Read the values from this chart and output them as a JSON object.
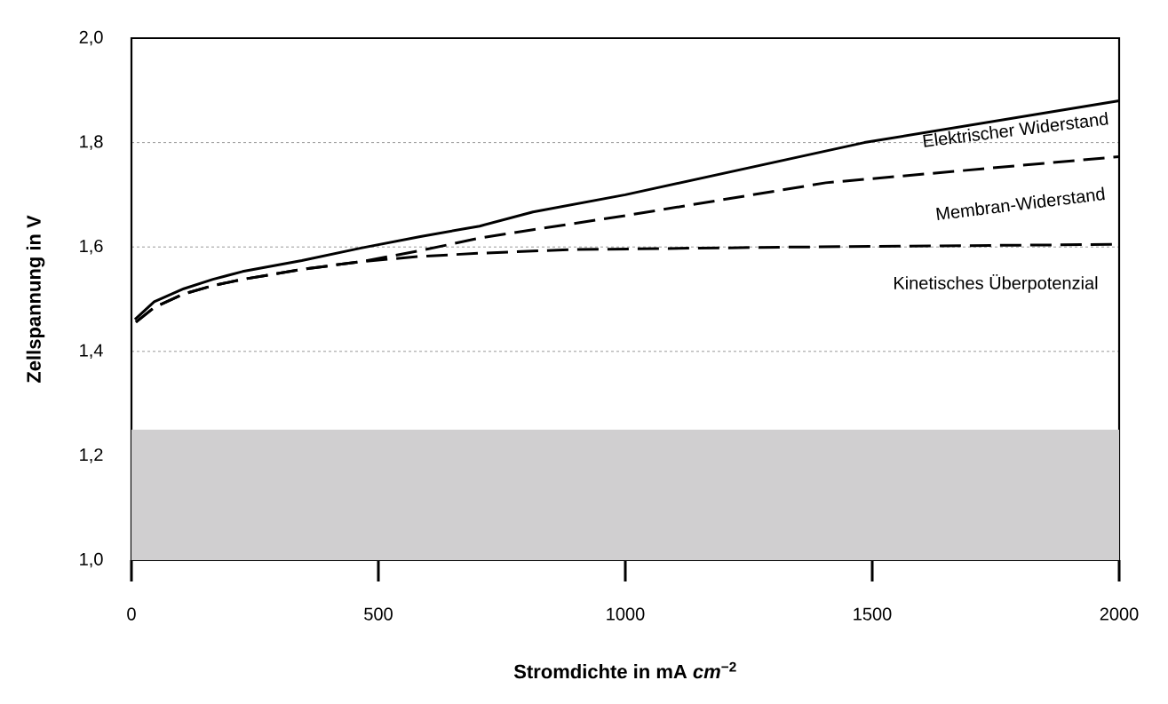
{
  "chart_data": {
    "type": "line",
    "xlabel": "Stromdichte in mA *cm*$^{−2}$",
    "ylabel": "Zellspannung in V",
    "xlim": [
      0,
      2000
    ],
    "ylim": [
      1.0,
      2.0
    ],
    "xticks": [
      0,
      500,
      1000,
      1500,
      2000
    ],
    "yticks": [
      {
        "value": 1.0,
        "label": "1,0"
      },
      {
        "value": 1.2,
        "label": "1,2"
      },
      {
        "value": 1.4,
        "label": "1,4"
      },
      {
        "value": 1.6,
        "label": "1,6"
      },
      {
        "value": 1.8,
        "label": "1,8"
      },
      {
        "value": 2.0,
        "label": "2,0"
      }
    ],
    "grid": "y",
    "series": [
      {
        "color": "#000000",
        "line_style": "solid",
        "x": [
          7,
          46,
          106,
          165,
          225,
          345,
          465,
          585,
          705,
          813,
          1000,
          1484,
          2000
        ],
        "values": [
          1.461,
          1.495,
          1.52,
          1.538,
          1.553,
          1.574,
          1.598,
          1.62,
          1.64,
          1.667,
          1.7,
          1.8,
          1.88
        ]
      },
      {
        "color": "#000000",
        "line_style": "dashed",
        "x": [
          9,
          46,
          106,
          165,
          225,
          345,
          465,
          585,
          705,
          813,
          1000,
          1406,
          2000
        ],
        "values": [
          1.456,
          1.484,
          1.51,
          1.526,
          1.538,
          1.557,
          1.572,
          1.593,
          1.617,
          1.633,
          1.66,
          1.723,
          1.773
        ]
      },
      {
        "color": "#000000",
        "line_style": "dashed",
        "x": [
          9,
          46,
          106,
          165,
          225,
          345,
          465,
          585,
          705,
          885,
          1359,
          2000
        ],
        "values": [
          1.456,
          1.484,
          1.51,
          1.526,
          1.538,
          1.557,
          1.572,
          1.582,
          1.588,
          1.595,
          1.6,
          1.605
        ]
      }
    ],
    "bands": [
      {
        "axis": "y",
        "from": 1.0,
        "to": 1.25,
        "color": "#d0cfd0"
      }
    ],
    "annotations": [
      "Elektrischer Widerstand",
      "Membran-Widerstand",
      "Kinetisches Überpotenzial"
    ]
  }
}
